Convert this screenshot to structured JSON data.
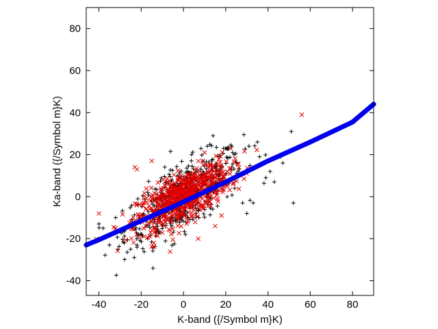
{
  "chart_data": {
    "type": "scatter",
    "title": "",
    "xlabel": "K-band ({/Symbol m}K)",
    "ylabel": "Ka-band ({/Symbol m}K)",
    "xlim": [
      -46,
      90
    ],
    "ylim": [
      -47,
      90
    ],
    "xticks": [
      -40,
      -20,
      0,
      20,
      40,
      60,
      80
    ],
    "yticks": [
      -40,
      -20,
      0,
      20,
      40,
      60,
      80
    ],
    "grid": false,
    "legend": "none",
    "series": [
      {
        "marker": "plus",
        "color": "#000000",
        "count": 520,
        "center": [
          0,
          0
        ],
        "spread": [
          14,
          11
        ],
        "correlation": 0.72,
        "x": [
          51,
          52,
          47,
          41,
          39,
          43,
          46,
          36,
          33,
          30,
          28,
          24,
          19,
          14,
          31,
          35,
          -35,
          -38,
          -40,
          -25,
          -28,
          -22
        ],
        "y": [
          31,
          -3,
          16,
          12,
          9,
          7,
          19,
          19,
          -3,
          -8,
          -3,
          20,
          23,
          29,
          24,
          26,
          -23,
          -15,
          -13,
          -25,
          -22,
          -24
        ]
      },
      {
        "marker": "cross",
        "color": "#e00000",
        "count": 700,
        "center": [
          0,
          0
        ],
        "spread": [
          11,
          8
        ],
        "correlation": 0.7,
        "x": [
          56,
          -40,
          -23,
          -22,
          -15,
          7,
          18,
          15,
          -14,
          -13,
          10
        ],
        "y": [
          39,
          -8,
          14,
          13,
          17,
          -20,
          -9,
          -14,
          -22,
          -18,
          21
        ]
      },
      {
        "marker": "dot-line",
        "color": "#0000ee",
        "x": [
          -46,
          -40,
          -20,
          0,
          20,
          40,
          60,
          80,
          90
        ],
        "y": [
          -23,
          -20.5,
          -11.5,
          -2.5,
          7,
          17,
          26,
          35.5,
          44
        ]
      }
    ]
  }
}
